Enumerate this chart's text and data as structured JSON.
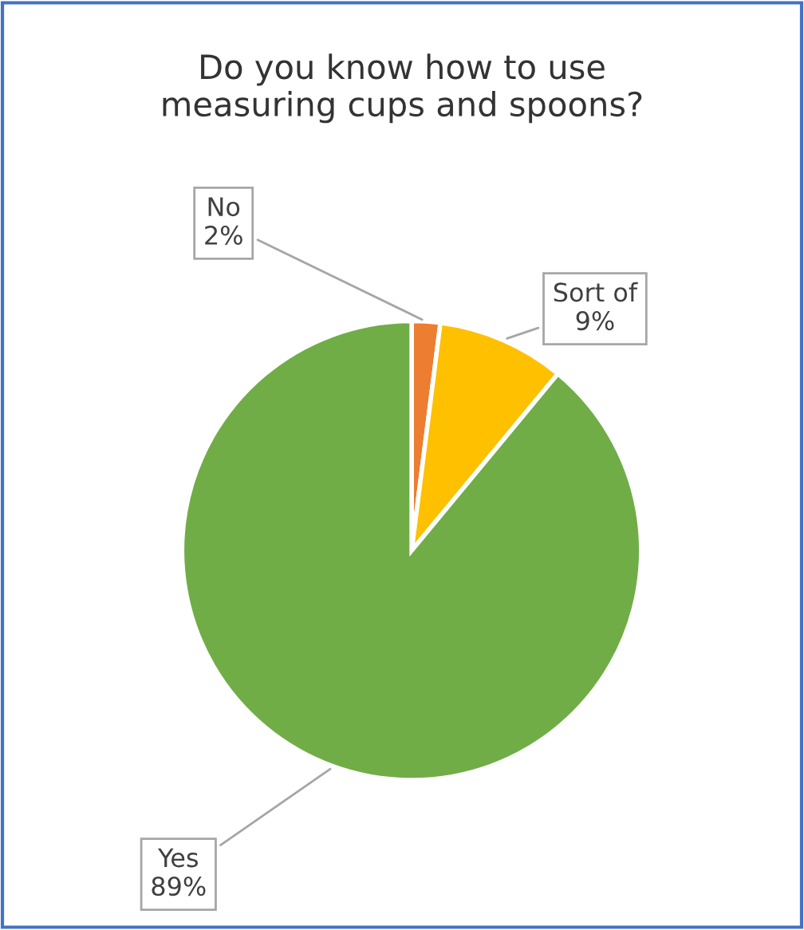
{
  "chart_data": {
    "type": "pie",
    "title": "Do you know how to use\nmeasuring cups and spoons?",
    "categories": [
      "No",
      "Sort of",
      "Yes"
    ],
    "values": [
      2,
      9,
      89
    ],
    "value_labels": [
      "2%",
      "9%",
      "89%"
    ],
    "colors": [
      "#ed7d31",
      "#ffc000",
      "#70ad47"
    ]
  }
}
